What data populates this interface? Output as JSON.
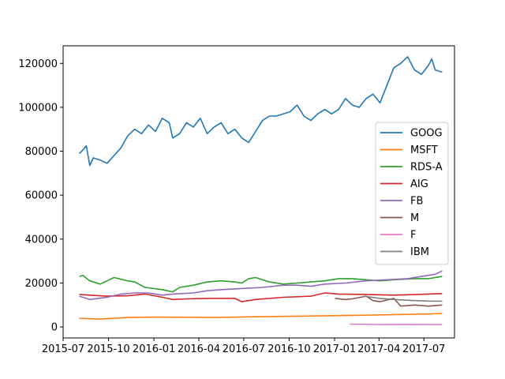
{
  "chart_data": {
    "type": "line",
    "title": "",
    "xlabel": "",
    "ylabel": "",
    "xlim": [
      "2015-07-01",
      "2017-09-01"
    ],
    "ylim": [
      -5000,
      128000
    ],
    "x_ticks": [
      {
        "date": "2015-07-01",
        "label": "2015-07"
      },
      {
        "date": "2015-10-01",
        "label": "2015-10"
      },
      {
        "date": "2016-01-01",
        "label": "2016-01"
      },
      {
        "date": "2016-04-01",
        "label": "2016-04"
      },
      {
        "date": "2016-07-01",
        "label": "2016-07"
      },
      {
        "date": "2016-10-01",
        "label": "2016-10"
      },
      {
        "date": "2017-01-01",
        "label": "2017-01"
      },
      {
        "date": "2017-04-01",
        "label": "2017-04"
      },
      {
        "date": "2017-07-01",
        "label": "2017-07"
      }
    ],
    "y_ticks": [
      {
        "value": 0,
        "label": "0"
      },
      {
        "value": 20000,
        "label": "20000"
      },
      {
        "value": 40000,
        "label": "40000"
      },
      {
        "value": 60000,
        "label": "60000"
      },
      {
        "value": 80000,
        "label": "80000"
      },
      {
        "value": 100000,
        "label": "100000"
      },
      {
        "value": 120000,
        "label": "120000"
      }
    ],
    "legend_position": "center-right",
    "series": [
      {
        "name": "GOOG",
        "color": "#1f77b4",
        "points": [
          [
            "2015-08-03",
            79000
          ],
          [
            "2015-08-10",
            80500
          ],
          [
            "2015-08-17",
            82500
          ],
          [
            "2015-08-24",
            73500
          ],
          [
            "2015-08-31",
            77000
          ],
          [
            "2015-09-14",
            76000
          ],
          [
            "2015-09-28",
            74500
          ],
          [
            "2015-10-12",
            78000
          ],
          [
            "2015-10-26",
            81500
          ],
          [
            "2015-11-09",
            87000
          ],
          [
            "2015-11-23",
            90000
          ],
          [
            "2015-12-07",
            88000
          ],
          [
            "2015-12-21",
            92000
          ],
          [
            "2016-01-04",
            89000
          ],
          [
            "2016-01-18",
            95000
          ],
          [
            "2016-02-01",
            93000
          ],
          [
            "2016-02-08",
            86000
          ],
          [
            "2016-02-22",
            88000
          ],
          [
            "2016-03-07",
            93000
          ],
          [
            "2016-03-21",
            91000
          ],
          [
            "2016-04-04",
            95000
          ],
          [
            "2016-04-18",
            88000
          ],
          [
            "2016-05-02",
            91000
          ],
          [
            "2016-05-16",
            93000
          ],
          [
            "2016-05-30",
            88000
          ],
          [
            "2016-06-13",
            90000
          ],
          [
            "2016-06-27",
            86000
          ],
          [
            "2016-07-11",
            84000
          ],
          [
            "2016-07-25",
            89000
          ],
          [
            "2016-08-08",
            94000
          ],
          [
            "2016-08-22",
            96000
          ],
          [
            "2016-09-05",
            96000
          ],
          [
            "2016-09-19",
            97000
          ],
          [
            "2016-10-03",
            98000
          ],
          [
            "2016-10-17",
            101000
          ],
          [
            "2016-10-31",
            96000
          ],
          [
            "2016-11-14",
            94000
          ],
          [
            "2016-11-28",
            97000
          ],
          [
            "2016-12-12",
            99000
          ],
          [
            "2016-12-26",
            97000
          ],
          [
            "2017-01-09",
            99000
          ],
          [
            "2017-01-23",
            104000
          ],
          [
            "2017-02-06",
            101000
          ],
          [
            "2017-02-20",
            100000
          ],
          [
            "2017-03-06",
            104000
          ],
          [
            "2017-03-20",
            106000
          ],
          [
            "2017-04-03",
            102000
          ],
          [
            "2017-04-17",
            110000
          ],
          [
            "2017-05-01",
            118000
          ],
          [
            "2017-05-15",
            120000
          ],
          [
            "2017-05-29",
            123000
          ],
          [
            "2017-06-12",
            117000
          ],
          [
            "2017-06-26",
            115000
          ],
          [
            "2017-07-10",
            119000
          ],
          [
            "2017-07-17",
            122000
          ],
          [
            "2017-07-24",
            117000
          ],
          [
            "2017-08-07",
            116000
          ]
        ]
      },
      {
        "name": "MSFT",
        "color": "#ff7f0e",
        "points": [
          [
            "2015-08-03",
            3900
          ],
          [
            "2015-09-14",
            3600
          ],
          [
            "2015-11-09",
            4300
          ],
          [
            "2016-01-04",
            4500
          ],
          [
            "2016-03-07",
            4400
          ],
          [
            "2016-05-02",
            4300
          ],
          [
            "2016-07-11",
            4600
          ],
          [
            "2016-09-19",
            4800
          ],
          [
            "2016-12-12",
            5100
          ],
          [
            "2017-02-20",
            5300
          ],
          [
            "2017-05-01",
            5600
          ],
          [
            "2017-07-10",
            5900
          ],
          [
            "2017-08-07",
            6100
          ]
        ]
      },
      {
        "name": "RDS-A",
        "color": "#2ca02c",
        "points": [
          [
            "2015-08-03",
            23000
          ],
          [
            "2015-08-10",
            23500
          ],
          [
            "2015-08-24",
            21000
          ],
          [
            "2015-09-14",
            19500
          ],
          [
            "2015-09-28",
            21000
          ],
          [
            "2015-10-12",
            22500
          ],
          [
            "2015-11-09",
            21000
          ],
          [
            "2015-11-23",
            20500
          ],
          [
            "2015-12-14",
            18000
          ],
          [
            "2016-01-18",
            17000
          ],
          [
            "2016-02-08",
            16000
          ],
          [
            "2016-02-22",
            18000
          ],
          [
            "2016-03-21",
            19000
          ],
          [
            "2016-04-18",
            20500
          ],
          [
            "2016-05-16",
            21000
          ],
          [
            "2016-06-13",
            20500
          ],
          [
            "2016-06-27",
            20000
          ],
          [
            "2016-07-11",
            22000
          ],
          [
            "2016-07-25",
            22500
          ],
          [
            "2016-08-22",
            20500
          ],
          [
            "2016-09-19",
            19500
          ],
          [
            "2016-10-17",
            20000
          ],
          [
            "2016-11-14",
            20500
          ],
          [
            "2016-12-12",
            21000
          ],
          [
            "2017-01-09",
            22000
          ],
          [
            "2017-02-06",
            22000
          ],
          [
            "2017-03-06",
            21500
          ],
          [
            "2017-04-03",
            21000
          ],
          [
            "2017-05-01",
            21500
          ],
          [
            "2017-06-12",
            22000
          ],
          [
            "2017-07-10",
            22000
          ],
          [
            "2017-08-07",
            23000
          ]
        ]
      },
      {
        "name": "AIG",
        "color": "#d62728",
        "points": [
          [
            "2015-08-03",
            14800
          ],
          [
            "2015-08-24",
            14500
          ],
          [
            "2015-09-28",
            14000
          ],
          [
            "2015-11-09",
            14200
          ],
          [
            "2015-12-14",
            15000
          ],
          [
            "2016-01-18",
            13500
          ],
          [
            "2016-02-08",
            12500
          ],
          [
            "2016-03-07",
            12800
          ],
          [
            "2016-04-18",
            13000
          ],
          [
            "2016-06-13",
            13000
          ],
          [
            "2016-06-27",
            11500
          ],
          [
            "2016-07-25",
            12500
          ],
          [
            "2016-09-19",
            13500
          ],
          [
            "2016-11-14",
            14000
          ],
          [
            "2016-12-12",
            15500
          ],
          [
            "2017-01-09",
            15000
          ],
          [
            "2017-03-06",
            14800
          ],
          [
            "2017-05-01",
            14500
          ],
          [
            "2017-07-10",
            15000
          ],
          [
            "2017-08-07",
            15200
          ]
        ]
      },
      {
        "name": "FB",
        "color": "#9467bd",
        "points": [
          [
            "2015-08-03",
            14000
          ],
          [
            "2015-08-24",
            12500
          ],
          [
            "2015-09-28",
            13500
          ],
          [
            "2015-10-26",
            15000
          ],
          [
            "2015-11-23",
            15500
          ],
          [
            "2015-12-21",
            15500
          ],
          [
            "2016-01-18",
            14500
          ],
          [
            "2016-02-08",
            15000
          ],
          [
            "2016-03-21",
            15500
          ],
          [
            "2016-04-18",
            16500
          ],
          [
            "2016-05-16",
            17000
          ],
          [
            "2016-06-27",
            17500
          ],
          [
            "2016-08-08",
            18000
          ],
          [
            "2016-09-19",
            19000
          ],
          [
            "2016-10-17",
            19000
          ],
          [
            "2016-11-14",
            18500
          ],
          [
            "2016-12-12",
            19500
          ],
          [
            "2017-01-23",
            20000
          ],
          [
            "2017-03-06",
            21000
          ],
          [
            "2017-04-17",
            21500
          ],
          [
            "2017-05-29",
            22000
          ],
          [
            "2017-06-26",
            23000
          ],
          [
            "2017-07-24",
            24000
          ],
          [
            "2017-08-07",
            25500
          ]
        ]
      },
      {
        "name": "M",
        "color": "#8c564b",
        "points": [
          [
            "2017-01-02",
            13000
          ],
          [
            "2017-01-23",
            12500
          ],
          [
            "2017-02-06",
            12800
          ],
          [
            "2017-03-06",
            14000
          ],
          [
            "2017-03-20",
            12000
          ],
          [
            "2017-04-03",
            11500
          ],
          [
            "2017-05-01",
            13000
          ],
          [
            "2017-05-15",
            9500
          ],
          [
            "2017-06-12",
            10000
          ],
          [
            "2017-07-10",
            9500
          ],
          [
            "2017-08-07",
            10000
          ]
        ]
      },
      {
        "name": "F",
        "color": "#e377c2",
        "points": [
          [
            "2017-02-01",
            1300
          ],
          [
            "2017-04-03",
            1100
          ],
          [
            "2017-06-01",
            1150
          ],
          [
            "2017-08-07",
            1100
          ]
        ]
      },
      {
        "name": "IBM",
        "color": "#7f7f7f",
        "points": [
          [
            "2017-03-01",
            14000
          ],
          [
            "2017-04-03",
            13000
          ],
          [
            "2017-05-01",
            12500
          ],
          [
            "2017-06-12",
            12000
          ],
          [
            "2017-07-10",
            11800
          ],
          [
            "2017-08-07",
            11700
          ]
        ]
      }
    ]
  }
}
